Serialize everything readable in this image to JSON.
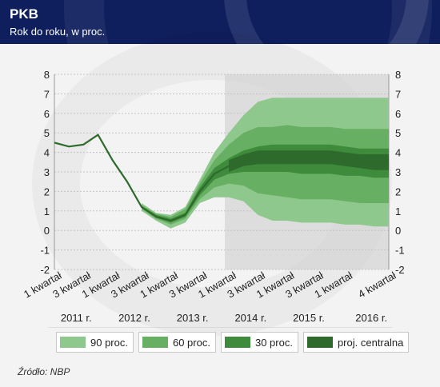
{
  "header": {
    "title": "PKB",
    "subtitle": "Rok do roku, w proc."
  },
  "source": "Źródło: NBP",
  "colors": {
    "header_bg": "#0f1f5e",
    "band90": "#8fc88d",
    "band60": "#67b063",
    "band30": "#3f8b3c",
    "central": "#2d6a2b",
    "projection_shade": "#d3d3d3"
  },
  "chart_data": {
    "type": "area",
    "title": "PKB",
    "subtitle": "Rok do roku, w proc.",
    "ylim": [
      -2,
      8
    ],
    "yticks": [
      -2,
      -1,
      0,
      1,
      2,
      3,
      4,
      5,
      6,
      7,
      8
    ],
    "x_tick_labels": [
      "1 kwartał",
      "3 kwartał",
      "1 kwartał",
      "3 kwartał",
      "1 kwartał",
      "3 kwartał",
      "1 kwartał",
      "3 kwartał",
      "1 kwartał",
      "3 kwartał",
      "1 kwartał",
      "4 kwartał"
    ],
    "x_tick_quarters": [
      0,
      2,
      4,
      6,
      8,
      10,
      12,
      14,
      16,
      18,
      20,
      23
    ],
    "year_labels": [
      "2011 r.",
      "2012 r.",
      "2013 r.",
      "2014 r.",
      "2015 r.",
      "2016 r."
    ],
    "year_label_quarters": [
      1.5,
      5.5,
      9.5,
      13.5,
      17.5,
      21.8
    ],
    "projection_start_quarter": 12,
    "grid": true,
    "legend_position": "bottom",
    "legend": [
      "90 proc.",
      "60 proc.",
      "30 proc.",
      "proj. centralna"
    ],
    "x": [
      0,
      1,
      2,
      3,
      4,
      5,
      6,
      7,
      8,
      9,
      10,
      11,
      12,
      13,
      14,
      15,
      16,
      17,
      18,
      19,
      20,
      21,
      22,
      23
    ],
    "central": [
      4.5,
      4.3,
      4.4,
      4.9,
      3.6,
      2.5,
      1.2,
      0.7,
      0.5,
      0.8,
      2.0,
      2.9,
      3.3,
      3.6,
      3.7,
      3.8,
      3.7,
      3.7,
      3.8,
      3.8,
      3.7,
      3.6,
      3.5,
      3.5
    ],
    "bands": [
      {
        "name": "90 proc.",
        "lower": [
          null,
          null,
          null,
          null,
          null,
          null,
          1.0,
          0.5,
          0.1,
          0.4,
          1.4,
          1.7,
          1.7,
          1.5,
          0.8,
          0.5,
          0.5,
          0.4,
          0.4,
          0.4,
          0.3,
          0.3,
          0.2,
          0.2
        ],
        "upper": [
          null,
          null,
          null,
          null,
          null,
          null,
          1.4,
          0.9,
          0.8,
          1.2,
          2.6,
          4.0,
          5.0,
          5.9,
          6.6,
          6.8,
          6.8,
          6.8,
          6.8,
          6.8,
          6.8,
          6.8,
          6.8,
          6.8
        ]
      },
      {
        "name": "60 proc.",
        "lower": [
          null,
          null,
          null,
          null,
          null,
          null,
          1.1,
          0.6,
          0.3,
          0.6,
          1.6,
          2.2,
          2.4,
          2.3,
          1.9,
          1.8,
          1.7,
          1.6,
          1.6,
          1.6,
          1.5,
          1.4,
          1.4,
          1.4
        ],
        "upper": [
          null,
          null,
          null,
          null,
          null,
          null,
          1.3,
          0.85,
          0.7,
          1.1,
          2.4,
          3.6,
          4.4,
          5.0,
          5.3,
          5.3,
          5.4,
          5.3,
          5.3,
          5.3,
          5.2,
          5.2,
          5.2,
          5.2
        ]
      },
      {
        "name": "30 proc.",
        "lower": [
          null,
          null,
          null,
          null,
          null,
          null,
          1.15,
          0.65,
          0.4,
          0.7,
          1.8,
          2.6,
          2.9,
          3.0,
          3.0,
          3.0,
          3.0,
          2.9,
          2.9,
          2.9,
          2.8,
          2.8,
          2.7,
          2.7
        ],
        "upper": [
          null,
          null,
          null,
          null,
          null,
          null,
          1.25,
          0.8,
          0.6,
          0.9,
          2.2,
          3.2,
          3.7,
          4.1,
          4.3,
          4.4,
          4.4,
          4.4,
          4.4,
          4.4,
          4.3,
          4.2,
          4.2,
          4.2
        ]
      }
    ],
    "central_band": {
      "name": "proj. centralna",
      "lower": [
        null,
        null,
        null,
        null,
        null,
        null,
        null,
        null,
        null,
        null,
        null,
        null,
        3.0,
        3.3,
        3.4,
        3.4,
        3.4,
        3.4,
        3.4,
        3.4,
        3.3,
        3.2,
        3.1,
        3.1
      ],
      "upper": [
        null,
        null,
        null,
        null,
        null,
        null,
        null,
        null,
        null,
        null,
        null,
        null,
        3.6,
        3.9,
        4.1,
        4.1,
        4.1,
        4.1,
        4.1,
        4.1,
        4.0,
        3.9,
        3.9,
        3.9
      ]
    }
  }
}
